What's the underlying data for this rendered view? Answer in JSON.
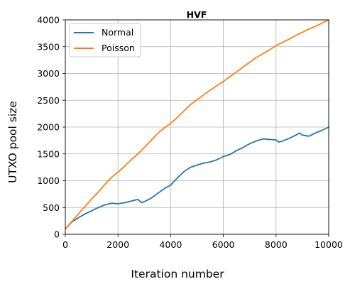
{
  "chart_data": {
    "type": "line",
    "title": "HVF",
    "xlabel": "Iteration number",
    "ylabel": "UTXO pool size",
    "xlim": [
      0,
      10000
    ],
    "ylim": [
      0,
      4000
    ],
    "xticks": [
      "0",
      "2000",
      "4000",
      "6000",
      "8000",
      "10000"
    ],
    "yticks": [
      "0",
      "500",
      "1000",
      "1500",
      "2000",
      "2500",
      "3000",
      "3500",
      "4000"
    ],
    "grid": true,
    "legend_position": "top-left",
    "series": [
      {
        "name": "Normal",
        "color": "#1f77b4",
        "x": [
          0,
          250,
          500,
          750,
          1000,
          1250,
          1500,
          1750,
          2000,
          2250,
          2500,
          2750,
          2900,
          3000,
          3250,
          3500,
          3750,
          4000,
          4250,
          4500,
          4750,
          5000,
          5250,
          5500,
          5750,
          6000,
          6250,
          6500,
          6750,
          7000,
          7250,
          7500,
          7750,
          8000,
          8100,
          8250,
          8500,
          8750,
          8900,
          9000,
          9250,
          9500,
          9750,
          10000
        ],
        "values": [
          100,
          230,
          310,
          380,
          440,
          500,
          550,
          580,
          570,
          590,
          620,
          650,
          590,
          610,
          670,
          760,
          850,
          920,
          1050,
          1170,
          1250,
          1290,
          1330,
          1350,
          1390,
          1450,
          1490,
          1560,
          1620,
          1690,
          1740,
          1780,
          1770,
          1760,
          1720,
          1740,
          1790,
          1850,
          1890,
          1850,
          1830,
          1890,
          1940,
          2000
        ]
      },
      {
        "name": "Poisson",
        "color": "#ff7f0e",
        "x": [
          0,
          250,
          500,
          750,
          1000,
          1250,
          1500,
          1750,
          2000,
          2250,
          2500,
          2750,
          3000,
          3250,
          3500,
          3750,
          4000,
          4250,
          4500,
          4750,
          5000,
          5250,
          5500,
          5750,
          6000,
          6250,
          6500,
          6750,
          7000,
          7250,
          7500,
          7750,
          8000,
          8250,
          8500,
          8750,
          9000,
          9250,
          9500,
          9750,
          10000
        ],
        "values": [
          100,
          240,
          380,
          520,
          660,
          790,
          930,
          1060,
          1160,
          1270,
          1390,
          1500,
          1620,
          1750,
          1880,
          1980,
          2070,
          2180,
          2300,
          2420,
          2510,
          2600,
          2690,
          2770,
          2850,
          2940,
          3030,
          3120,
          3210,
          3300,
          3370,
          3440,
          3520,
          3580,
          3640,
          3710,
          3770,
          3830,
          3880,
          3940,
          4000
        ]
      }
    ]
  }
}
